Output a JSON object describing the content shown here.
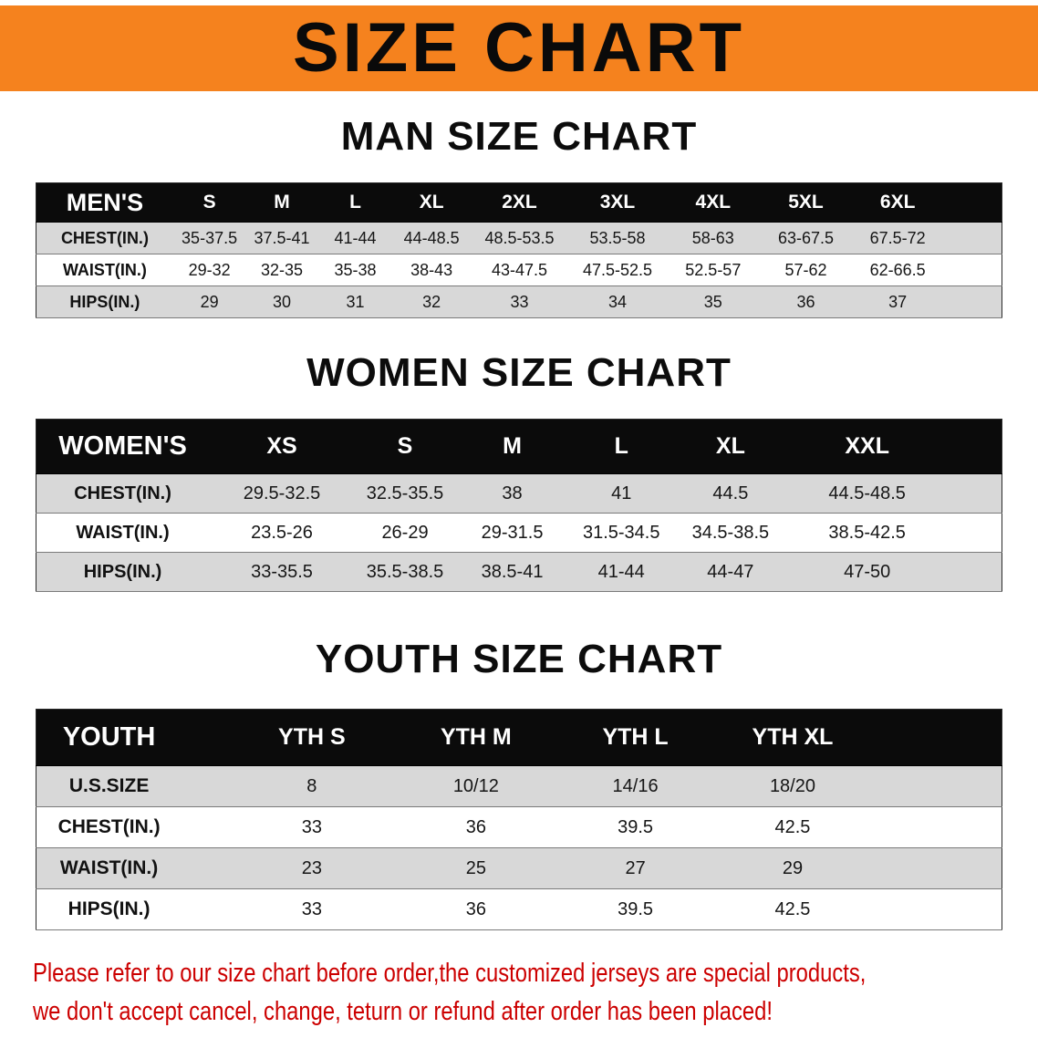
{
  "banner": {
    "title": "SIZE CHART"
  },
  "colors": {
    "banner_bg": "#f5821e",
    "header_bar": "#0b0b0b",
    "stripe_gray": "#d8d8d8",
    "disclaimer_red": "#cc0000"
  },
  "sections": [
    {
      "id": "men",
      "heading": "MAN SIZE CHART",
      "table": {
        "title": "MEN'S",
        "columns": [
          "S",
          "M",
          "L",
          "XL",
          "2XL",
          "3XL",
          "4XL",
          "5XL",
          "6XL"
        ],
        "rows": [
          {
            "label": "CHEST(IN.)",
            "values": [
              "35-37.5",
              "37.5-41",
              "41-44",
              "44-48.5",
              "48.5-53.5",
              "53.5-58",
              "58-63",
              "63-67.5",
              "67.5-72"
            ]
          },
          {
            "label": "WAIST(IN.)",
            "values": [
              "29-32",
              "32-35",
              "35-38",
              "38-43",
              "43-47.5",
              "47.5-52.5",
              "52.5-57",
              "57-62",
              "62-66.5"
            ]
          },
          {
            "label": "HIPS(IN.)",
            "values": [
              "29",
              "30",
              "31",
              "32",
              "33",
              "34",
              "35",
              "36",
              "37"
            ]
          }
        ]
      }
    },
    {
      "id": "women",
      "heading": "WOMEN SIZE CHART",
      "table": {
        "title": "WOMEN'S",
        "columns": [
          "XS",
          "S",
          "M",
          "L",
          "XL",
          "XXL"
        ],
        "rows": [
          {
            "label": "CHEST(IN.)",
            "values": [
              "29.5-32.5",
              "32.5-35.5",
              "38",
              "41",
              "44.5",
              "44.5-48.5"
            ]
          },
          {
            "label": "WAIST(IN.)",
            "values": [
              "23.5-26",
              "26-29",
              "29-31.5",
              "31.5-34.5",
              "34.5-38.5",
              "38.5-42.5"
            ]
          },
          {
            "label": "HIPS(IN.)",
            "values": [
              "33-35.5",
              "35.5-38.5",
              "38.5-41",
              "41-44",
              "44-47",
              "47-50"
            ]
          }
        ]
      }
    },
    {
      "id": "youth",
      "heading": "YOUTH SIZE CHART",
      "table": {
        "title": "YOUTH",
        "columns": [
          "YTH S",
          "YTH M",
          "YTH L",
          "YTH XL"
        ],
        "rows": [
          {
            "label": "U.S.SIZE",
            "values": [
              "8",
              "10/12",
              "14/16",
              "18/20"
            ]
          },
          {
            "label": "CHEST(IN.)",
            "values": [
              "33",
              "36",
              "39.5",
              "42.5"
            ]
          },
          {
            "label": "WAIST(IN.)",
            "values": [
              "23",
              "25",
              "27",
              "29"
            ]
          },
          {
            "label": "HIPS(IN.)",
            "values": [
              "33",
              "36",
              "39.5",
              "42.5"
            ]
          }
        ]
      }
    }
  ],
  "disclaimer": {
    "line1": "Please refer to our size chart before order,the customized jerseys are special products,",
    "line2": "we don't accept cancel, change, teturn or refund after order has been placed!"
  }
}
